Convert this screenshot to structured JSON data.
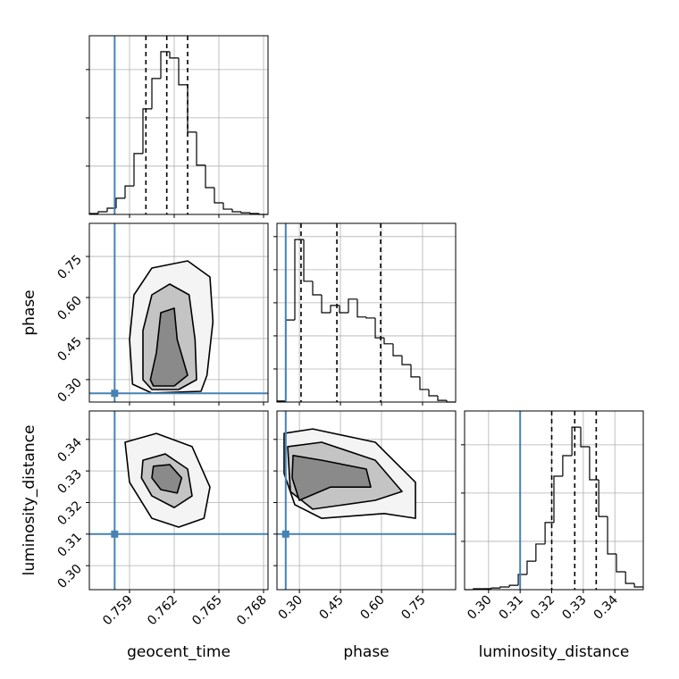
{
  "chart_data": {
    "type": "corner",
    "labels": [
      "geocent_time",
      "phase",
      "luminosity_distance"
    ],
    "truths": [
      0.758,
      0.25,
      0.31
    ],
    "truth_color": "#4682b4",
    "line_color": "#000000",
    "grid": true,
    "axes": [
      {
        "lim": [
          0.7563,
          0.7683
        ],
        "ticks": [
          0.759,
          0.762,
          0.765,
          0.768
        ]
      },
      {
        "lim": [
          0.218,
          0.871
        ],
        "ticks": [
          {
            "value": 0.3,
            "label": "0.30"
          },
          0.45,
          {
            "value": 0.6,
            "label": "0.60"
          },
          0.75
        ]
      },
      {
        "lim": [
          0.2924,
          0.349
        ],
        "ticks": [
          {
            "value": 0.3,
            "label": "0.30"
          },
          0.31,
          0.32,
          0.33,
          0.34
        ]
      }
    ],
    "histograms": [
      {
        "bins": [
          0.7563,
          0.7569,
          0.7575,
          0.7581,
          0.7587,
          0.7593,
          0.7599,
          0.7605,
          0.7611,
          0.7617,
          0.7623,
          0.7629,
          0.7635,
          0.7641,
          0.7647,
          0.7653,
          0.7659,
          0.7665,
          0.7671,
          0.7677,
          0.7683
        ],
        "counts": [
          4,
          11,
          26,
          67,
          118,
          252,
          437,
          563,
          674,
          648,
          537,
          341,
          204,
          111,
          48,
          22,
          11,
          7,
          4,
          0
        ],
        "quantiles": [
          0.7601,
          0.7615,
          0.7629
        ],
        "ylim": [
          0,
          740
        ],
        "yticks": [
          200,
          400,
          600
        ]
      },
      {
        "bins": [
          0.218,
          0.2507,
          0.2833,
          0.316,
          0.3486,
          0.3813,
          0.4139,
          0.4466,
          0.4792,
          0.5119,
          0.5445,
          0.5772,
          0.6098,
          0.6425,
          0.6751,
          0.7078,
          0.7404,
          0.7731,
          0.8057,
          0.8384,
          0.871
        ],
        "counts": [
          3,
          248,
          491,
          365,
          324,
          270,
          292,
          270,
          311,
          257,
          254,
          194,
          176,
          140,
          113,
          76,
          38,
          19,
          5,
          0
        ],
        "quantiles": [
          0.306,
          0.437,
          0.597
        ],
        "ylim": [
          0,
          540
        ],
        "yticks": [
          100,
          200,
          300,
          400,
          500
        ]
      },
      {
        "bins": [
          0.2924,
          0.2952,
          0.2981,
          0.3009,
          0.3037,
          0.3066,
          0.3094,
          0.3122,
          0.315,
          0.3179,
          0.3207,
          0.3235,
          0.3264,
          0.3292,
          0.332,
          0.3349,
          0.3377,
          0.3405,
          0.3434,
          0.3462,
          0.349
        ],
        "counts": [
          0,
          4,
          4,
          7,
          11,
          18,
          63,
          118,
          189,
          278,
          470,
          555,
          673,
          592,
          455,
          303,
          148,
          74,
          26,
          11
        ],
        "quantiles": [
          0.32,
          0.3273,
          0.3341
        ],
        "ylim": [
          0,
          740
        ],
        "yticks": [
          200,
          400,
          600
        ]
      }
    ],
    "contours": [
      {
        "x_param": 0,
        "y_param": 1,
        "levels": [
          {
            "x": [
              0.7592,
              0.759,
              0.7593,
              0.7605,
              0.7629,
              0.7644,
              0.7646,
              0.7642,
              0.7638,
              0.7605
            ],
            "y": [
              0.2833,
              0.4466,
              0.6098,
              0.7078,
              0.7339,
              0.6751,
              0.5119,
              0.316,
              0.2572,
              0.2507
            ]
          },
          {
            "x": [
              0.7599,
              0.7599,
              0.7605,
              0.7617,
              0.763,
              0.7634,
              0.7635,
              0.7623,
              0.7605
            ],
            "y": [
              0.2996,
              0.4792,
              0.6098,
              0.649,
              0.6098,
              0.4466,
              0.2996,
              0.2637,
              0.2637
            ]
          },
          {
            "x": [
              0.7604,
              0.7608,
              0.7611,
              0.762,
              0.7622,
              0.7629,
              0.762,
              0.7606
            ],
            "y": [
              0.2996,
              0.3976,
              0.5445,
              0.5608,
              0.4466,
              0.316,
              0.2768,
              0.2768
            ]
          }
        ]
      },
      {
        "x_param": 0,
        "y_param": 2,
        "levels": [
          {
            "x": [
              0.7587,
              0.7608,
              0.7632,
              0.7644,
              0.764,
              0.7623,
              0.7605,
              0.759
            ],
            "y": [
              0.3391,
              0.3419,
              0.3377,
              0.3249,
              0.315,
              0.3122,
              0.315,
              0.3264
            ]
          },
          {
            "x": [
              0.7599,
              0.7614,
              0.7629,
              0.7632,
              0.762,
              0.7605,
              0.7598
            ],
            "y": [
              0.3334,
              0.3354,
              0.3306,
              0.3221,
              0.3184,
              0.3221,
              0.3278
            ]
          },
          {
            "x": [
              0.7606,
              0.7617,
              0.7625,
              0.7622,
              0.7611,
              0.7605
            ],
            "y": [
              0.3315,
              0.332,
              0.3278,
              0.323,
              0.3241,
              0.3278
            ]
          }
        ]
      },
      {
        "x_param": 1,
        "y_param": 2,
        "levels": [
          {
            "x": [
              0.2441,
              0.3486,
              0.5772,
              0.7241,
              0.7241,
              0.6098,
              0.3813,
              0.2833,
              0.2441
            ],
            "y": [
              0.3419,
              0.3433,
              0.3391,
              0.3264,
              0.315,
              0.3165,
              0.315,
              0.3193,
              0.3292
            ]
          },
          {
            "x": [
              0.2572,
              0.3813,
              0.5772,
              0.6751,
              0.5772,
              0.3486,
              0.267
            ],
            "y": [
              0.3377,
              0.3391,
              0.3334,
              0.3235,
              0.3207,
              0.3179,
              0.3235
            ]
          },
          {
            "x": [
              0.2768,
              0.3813,
              0.5445,
              0.5609,
              0.4139,
              0.2996,
              0.2735
            ],
            "y": [
              0.3349,
              0.3334,
              0.3306,
              0.3249,
              0.3249,
              0.3207,
              0.3278
            ]
          }
        ]
      }
    ]
  }
}
